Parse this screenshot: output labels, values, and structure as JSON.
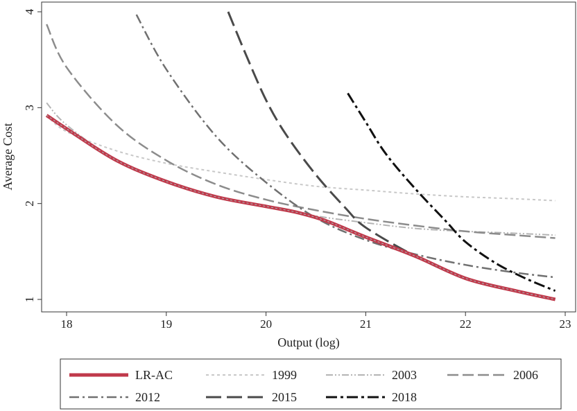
{
  "chart_data": {
    "type": "line",
    "title": "",
    "xlabel": "Output (log)",
    "ylabel": "Average Cost",
    "xlim": [
      17.8,
      23.1
    ],
    "ylim": [
      0.88,
      4.1
    ],
    "x_ticks": [
      18,
      19,
      20,
      21,
      22,
      23
    ],
    "y_ticks": [
      1,
      2,
      3,
      4
    ],
    "x_tick_labels": [
      "18",
      "19",
      "20",
      "21",
      "22",
      "23"
    ],
    "y_tick_labels": [
      "1",
      "2",
      "3",
      "4"
    ],
    "grid": false,
    "legend_position": "bottom",
    "series": [
      {
        "name": "LR-AC",
        "color": "#c0394b",
        "style": "solid-thick",
        "x": [
          17.8,
          18.0,
          18.5,
          19.0,
          19.5,
          20.0,
          20.3,
          20.6,
          21.0,
          21.5,
          22.0,
          22.5,
          22.9
        ],
        "y": [
          2.92,
          2.78,
          2.45,
          2.23,
          2.07,
          1.97,
          1.91,
          1.82,
          1.65,
          1.45,
          1.22,
          1.09,
          1.0
        ]
      },
      {
        "name": "1999",
        "color": "#c8c8c8",
        "style": "short-dash",
        "x": [
          17.8,
          18.0,
          18.5,
          19.0,
          19.5,
          20.0,
          20.5,
          21.0,
          21.5,
          22.0,
          22.5,
          22.9
        ],
        "y": [
          2.92,
          2.75,
          2.55,
          2.42,
          2.33,
          2.25,
          2.18,
          2.14,
          2.1,
          2.07,
          2.05,
          2.03
        ]
      },
      {
        "name": "2003",
        "color": "#b4b4b4",
        "style": "dash-dot-dot",
        "x": [
          17.8,
          18.0,
          18.5,
          19.0,
          19.5,
          20.0,
          20.5,
          21.0,
          21.5,
          22.0,
          22.5,
          22.9
        ],
        "y": [
          3.05,
          2.82,
          2.45,
          2.23,
          2.07,
          1.97,
          1.87,
          1.8,
          1.74,
          1.71,
          1.69,
          1.67
        ]
      },
      {
        "name": "2006",
        "color": "#8c8c8c",
        "style": "long-dash",
        "x": [
          17.8,
          18.0,
          18.5,
          19.0,
          19.5,
          20.0,
          20.5,
          21.0,
          21.5,
          22.0,
          22.5,
          22.9
        ],
        "y": [
          3.87,
          3.42,
          2.82,
          2.45,
          2.2,
          2.04,
          1.93,
          1.84,
          1.77,
          1.71,
          1.67,
          1.64
        ]
      },
      {
        "name": "2012",
        "color": "#707070",
        "style": "dash-dot",
        "x": [
          18.7,
          19.0,
          19.5,
          20.0,
          20.5,
          21.0,
          21.5,
          22.0,
          22.5,
          22.9
        ],
        "y": [
          3.97,
          3.4,
          2.7,
          2.22,
          1.85,
          1.62,
          1.47,
          1.36,
          1.28,
          1.23
        ]
      },
      {
        "name": "2015",
        "color": "#4a4a4a",
        "style": "long-dash-heavy",
        "x": [
          19.62,
          19.8,
          20.0,
          20.2,
          20.5,
          20.8,
          21.0,
          21.5,
          22.0,
          22.5,
          22.9
        ],
        "y": [
          4.0,
          3.55,
          3.08,
          2.72,
          2.3,
          1.95,
          1.75,
          1.45,
          1.22,
          1.09,
          1.0
        ]
      },
      {
        "name": "2018",
        "color": "#111111",
        "style": "dash-dot-heavy",
        "x": [
          20.82,
          21.0,
          21.2,
          21.5,
          21.8,
          22.0,
          22.3,
          22.6,
          22.9
        ],
        "y": [
          3.15,
          2.85,
          2.52,
          2.15,
          1.82,
          1.6,
          1.38,
          1.22,
          1.09
        ]
      }
    ]
  }
}
